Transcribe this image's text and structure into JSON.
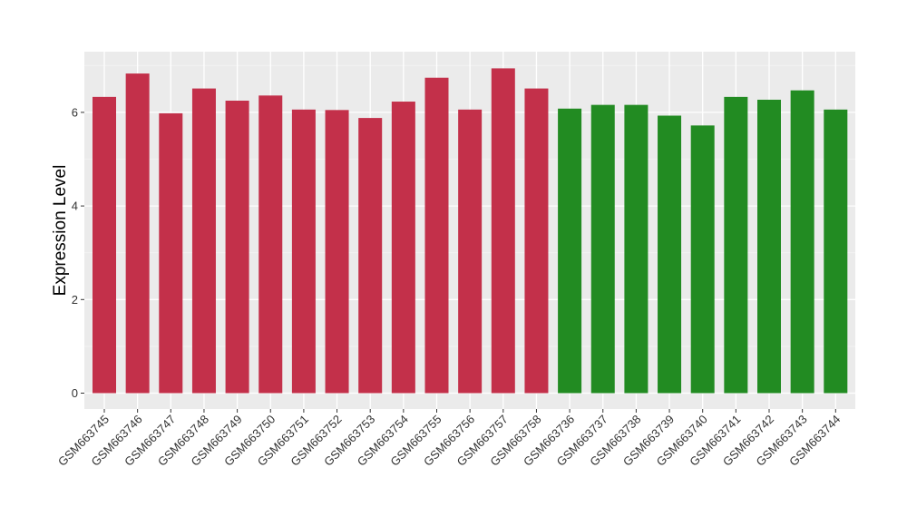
{
  "chart_data": {
    "type": "bar",
    "ylabel": "Expression Level",
    "xlabel": "",
    "ylim": [
      0,
      7
    ],
    "yticks": [
      0,
      2,
      4,
      6
    ],
    "grid": true,
    "legend": "none",
    "colors": {
      "group1": "#C3304A",
      "group2": "#228B22"
    },
    "categories": [
      "GSM663745",
      "GSM663746",
      "GSM663747",
      "GSM663748",
      "GSM663749",
      "GSM663750",
      "GSM663751",
      "GSM663752",
      "GSM663753",
      "GSM663754",
      "GSM663755",
      "GSM663756",
      "GSM663757",
      "GSM663758",
      "GSM663736",
      "GSM663737",
      "GSM663738",
      "GSM663739",
      "GSM663740",
      "GSM663741",
      "GSM663742",
      "GSM663743",
      "GSM663744"
    ],
    "values": [
      6.33,
      6.83,
      5.98,
      6.51,
      6.25,
      6.36,
      6.06,
      6.05,
      5.88,
      6.23,
      6.74,
      6.06,
      6.94,
      6.51,
      6.08,
      6.16,
      6.16,
      5.93,
      5.72,
      6.33,
      6.27,
      6.47,
      6.06
    ],
    "groups": [
      1,
      1,
      1,
      1,
      1,
      1,
      1,
      1,
      1,
      1,
      1,
      1,
      1,
      1,
      2,
      2,
      2,
      2,
      2,
      2,
      2,
      2,
      2
    ]
  }
}
